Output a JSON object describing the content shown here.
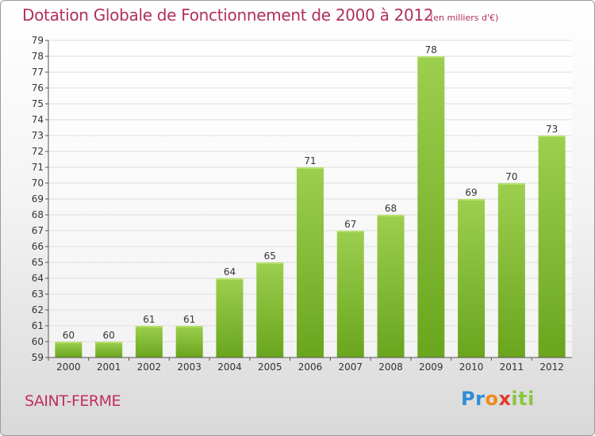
{
  "header": {
    "title": "Dotation Globale de Fonctionnement de 2000 à 2012",
    "subtitle": "(en milliers d'€)"
  },
  "footer": {
    "place": "SAINT-FERME",
    "logo": {
      "p1": "Pr",
      "p2": "o",
      "p3": "x",
      "p4": "iti"
    }
  },
  "chart_data": {
    "type": "bar",
    "title": "Dotation Globale de Fonctionnement de 2000 à 2012",
    "subtitle": "(en milliers d'€)",
    "xlabel": "",
    "ylabel": "",
    "categories": [
      "2000",
      "2001",
      "2002",
      "2003",
      "2004",
      "2005",
      "2006",
      "2007",
      "2008",
      "2009",
      "2010",
      "2011",
      "2012"
    ],
    "values": [
      60,
      60,
      61,
      61,
      64,
      65,
      71,
      67,
      68,
      78,
      69,
      70,
      73
    ],
    "ylim": [
      59,
      79
    ],
    "yticks": [
      59,
      60,
      61,
      62,
      63,
      64,
      65,
      66,
      67,
      68,
      69,
      70,
      71,
      72,
      73,
      74,
      75,
      76,
      77,
      78,
      79
    ],
    "grid": true,
    "data_labels": true,
    "legend": "none",
    "colors": {
      "bar_top": "#9ccf4e",
      "bar_bottom": "#6aa51e",
      "title": "#b0305a",
      "grid": "#dedede"
    }
  }
}
